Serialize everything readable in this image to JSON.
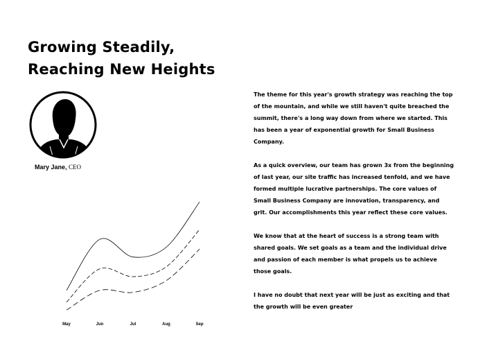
{
  "title": {
    "line1": "Growing Steadily,",
    "line2": "Reaching New Heights"
  },
  "profile": {
    "icon": "person-silhouette-icon",
    "name": "Mary Jane,",
    "role": "CEO"
  },
  "body": {
    "paragraphs": [
      "The theme for this year's growth strategy was reaching the top of the mountain, and while we still haven't quite breached the summit, there's a long way down from where we started. This has been a year of exponential growth for Small Business Company.",
      "As a quick overview, our team has grown 3x from the beginning of last year, our site traffic has increased tenfold, and we have formed multiple lucrative partnerships. The core values of Small Business Company are innovation, transparency, and grit. Our accomplishments this year reflect these core values.",
      "We know that at the heart of success is a strong team with shared goals. We set goals as a team and the individual drive and passion of each member is what propels us to achieve those goals.",
      "I have no doubt that next year will be just as exciting and that the growth will be even greater"
    ]
  },
  "chart_data": {
    "type": "line",
    "categories": [
      "May",
      "Jun",
      "Jul",
      "Aug",
      "Sep"
    ],
    "series": [
      {
        "values": [
          22,
          74,
          56,
          66,
          112
        ]
      },
      {
        "values": [
          10,
          44,
          36,
          46,
          84
        ]
      },
      {
        "values": [
          2,
          22,
          20,
          32,
          64
        ]
      }
    ],
    "ylim": [
      0,
      120
    ],
    "grid": false,
    "line_color": "#000000"
  }
}
